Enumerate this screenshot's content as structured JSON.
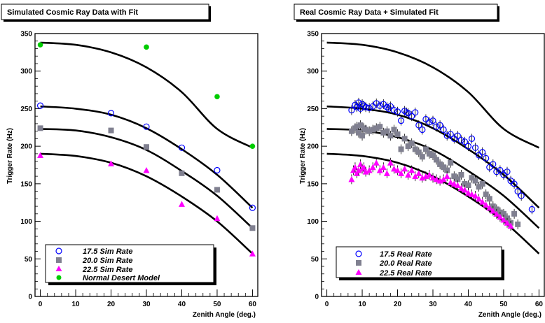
{
  "chart_data": [
    {
      "type": "scatter",
      "title": "Simulated Cosmic Ray Data with Fit",
      "xlabel": "Zenith Angle (deg.)",
      "ylabel": "Trigger Rate (Hz)",
      "xlim": [
        -1.5,
        61.5
      ],
      "ylim": [
        0,
        350
      ],
      "xticks": [
        "0",
        "10",
        "20",
        "30",
        "40",
        "50",
        "60"
      ],
      "yticks": [
        "0",
        "50",
        "100",
        "150",
        "200",
        "250",
        "300",
        "350"
      ],
      "legend_position": "bottom-left",
      "series": [
        {
          "name": "17.5 Sim Rate",
          "marker": "open-circle",
          "color": "#0000ff",
          "x": [
            0,
            20,
            30,
            40,
            50,
            60
          ],
          "y": [
            254,
            244,
            226,
            198,
            168,
            118
          ]
        },
        {
          "name": "20.0 Sim Rate",
          "marker": "square",
          "color": "#808090",
          "x": [
            0,
            20,
            30,
            40,
            50,
            60
          ],
          "y": [
            224,
            221,
            199,
            164,
            142,
            91
          ]
        },
        {
          "name": "22.5 Sim Rate",
          "marker": "triangle",
          "color": "#ff00ff",
          "x": [
            0,
            20,
            30,
            40,
            50,
            60
          ],
          "y": [
            188,
            177,
            168,
            123,
            104,
            57
          ]
        },
        {
          "name": "Normal Desert Model",
          "marker": "filled-circle",
          "color": "#00cc00",
          "x": [
            0,
            30,
            50,
            60
          ],
          "y": [
            335,
            332,
            266,
            200
          ]
        }
      ],
      "fits": [
        {
          "x": [
            0,
            10,
            20,
            30,
            40,
            50,
            60
          ],
          "y": [
            338,
            335,
            325,
            305,
            272,
            223,
            198
          ]
        },
        {
          "x": [
            0,
            10,
            20,
            30,
            40,
            50,
            60
          ],
          "y": [
            253,
            250,
            242,
            224,
            196,
            162,
            118
          ]
        },
        {
          "x": [
            0,
            10,
            20,
            30,
            40,
            50,
            60
          ],
          "y": [
            223,
            221,
            212,
            195,
            167,
            134,
            91
          ]
        },
        {
          "x": [
            0,
            10,
            20,
            30,
            40,
            50,
            60
          ],
          "y": [
            190,
            187,
            178,
            160,
            133,
            100,
            57
          ]
        }
      ]
    },
    {
      "type": "scatter",
      "title": "Real Cosmic Ray Data + Simulated Fit",
      "xlabel": "Zenith Angle (deg.)",
      "ylabel": "Trigger Rate (Hz)",
      "xlim": [
        -1.5,
        61.5
      ],
      "ylim": [
        0,
        350
      ],
      "xticks": [
        "0",
        "10",
        "20",
        "30",
        "40",
        "50",
        "60"
      ],
      "yticks": [
        "0",
        "50",
        "100",
        "150",
        "200",
        "250",
        "300",
        "350"
      ],
      "legend_position": "bottom-left",
      "series": [
        {
          "name": "17.5 Real Rate",
          "marker": "open-circle",
          "color": "#0000ff",
          "x": [
            7,
            8,
            8.5,
            9,
            9.5,
            10,
            10.5,
            11,
            12,
            13,
            14,
            15,
            16,
            17,
            17.5,
            18,
            19,
            20,
            21,
            22,
            22.5,
            23,
            24,
            25,
            26,
            27,
            28,
            29,
            30,
            31,
            32,
            33,
            34,
            35,
            36,
            37,
            38,
            39,
            40,
            41,
            42,
            43,
            44,
            45,
            46,
            47,
            48,
            49,
            50,
            51,
            52,
            53,
            54,
            55,
            58
          ],
          "y": [
            248,
            255,
            252,
            258,
            250,
            256,
            254,
            252,
            251,
            253,
            257,
            254,
            256,
            252,
            250,
            253,
            248,
            246,
            234,
            247,
            245,
            244,
            240,
            245,
            228,
            222,
            236,
            232,
            234,
            226,
            228,
            222,
            214,
            216,
            210,
            214,
            208,
            206,
            200,
            210,
            198,
            188,
            192,
            184,
            172,
            176,
            166,
            168,
            162,
            166,
            154,
            150,
            140,
            134,
            116
          ]
        },
        {
          "name": "20.0 Real Rate",
          "marker": "square",
          "color": "#808090",
          "x": [
            7,
            8,
            8.5,
            9,
            9.5,
            10,
            10.5,
            11,
            12,
            13,
            14,
            15,
            16,
            17,
            18,
            19,
            20,
            21,
            22,
            23,
            24,
            25,
            26,
            27,
            28,
            29,
            30,
            31,
            32,
            33,
            34,
            35,
            36,
            37,
            38,
            39,
            40,
            41,
            42,
            43,
            44,
            45,
            46,
            47,
            48,
            49,
            50,
            51,
            52,
            53,
            54
          ],
          "y": [
            220,
            224,
            226,
            218,
            228,
            214,
            224,
            222,
            220,
            222,
            224,
            226,
            218,
            220,
            214,
            222,
            216,
            196,
            210,
            200,
            204,
            196,
            192,
            186,
            196,
            190,
            188,
            182,
            176,
            172,
            168,
            178,
            160,
            156,
            162,
            150,
            148,
            158,
            154,
            146,
            150,
            136,
            130,
            120,
            116,
            112,
            110,
            104,
            98,
            110,
            96
          ]
        },
        {
          "name": "22.5 Real Rate",
          "marker": "triangle",
          "color": "#ff00ff",
          "x": [
            7,
            7.5,
            8,
            8.5,
            9,
            9.5,
            10,
            10.5,
            11,
            12,
            13,
            14,
            15,
            16,
            17,
            18,
            19,
            20,
            21,
            22,
            23,
            24,
            25,
            26,
            27,
            28,
            29,
            30,
            31,
            32,
            33,
            34,
            35,
            36,
            37,
            38,
            39,
            40,
            41,
            42,
            43,
            44,
            45,
            46,
            47,
            48,
            49,
            50,
            51,
            52
          ],
          "y": [
            156,
            168,
            172,
            164,
            168,
            176,
            170,
            172,
            166,
            168,
            172,
            178,
            168,
            172,
            164,
            178,
            170,
            168,
            164,
            170,
            162,
            168,
            160,
            164,
            158,
            160,
            162,
            158,
            156,
            154,
            156,
            160,
            152,
            150,
            148,
            144,
            142,
            138,
            136,
            134,
            130,
            126,
            122,
            118,
            114,
            110,
            106,
            102,
            98,
            94
          ]
        }
      ],
      "fits": [
        {
          "x": [
            0,
            10,
            20,
            30,
            40,
            50,
            60
          ],
          "y": [
            338,
            335,
            325,
            305,
            272,
            223,
            198
          ]
        },
        {
          "x": [
            0,
            10,
            20,
            30,
            40,
            50,
            60
          ],
          "y": [
            253,
            250,
            242,
            224,
            196,
            162,
            118
          ]
        },
        {
          "x": [
            0,
            10,
            20,
            30,
            40,
            50,
            60
          ],
          "y": [
            223,
            221,
            212,
            195,
            167,
            134,
            91
          ]
        },
        {
          "x": [
            0,
            10,
            20,
            30,
            40,
            50,
            60
          ],
          "y": [
            190,
            187,
            178,
            160,
            133,
            100,
            57
          ]
        }
      ]
    }
  ]
}
